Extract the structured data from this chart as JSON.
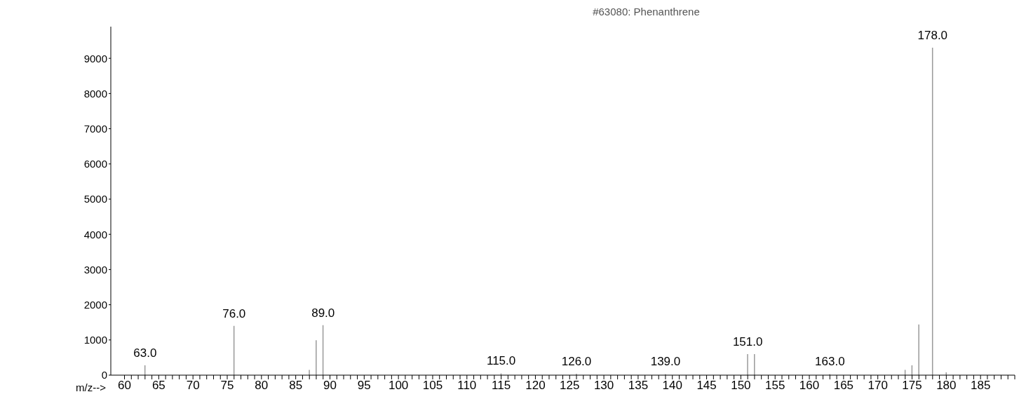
{
  "chart_data": {
    "type": "bar",
    "title": "#63080: Phenanthrene",
    "xlabel": "m/z-->",
    "x": [
      63,
      76,
      87,
      88,
      89,
      115,
      126,
      139,
      151,
      152,
      163,
      174,
      175,
      176,
      178,
      180
    ],
    "values": [
      280,
      1400,
      150,
      990,
      1420,
      50,
      40,
      30,
      600,
      600,
      30,
      150,
      280,
      1440,
      9300,
      80
    ],
    "color": "#999999",
    "xlim": [
      58,
      190
    ],
    "xticks": [
      60,
      {
        "value": 61,
        "label": null
      },
      {
        "value": 62,
        "label": null
      },
      {
        "value": 63,
        "label": null
      },
      {
        "value": 64,
        "label": null
      },
      65,
      {
        "value": 66,
        "label": null
      },
      {
        "value": 67,
        "label": null
      },
      {
        "value": 68,
        "label": null
      },
      {
        "value": 69,
        "label": null
      },
      70,
      {
        "value": 71,
        "label": null
      },
      {
        "value": 72,
        "label": null
      },
      {
        "value": 73,
        "label": null
      },
      {
        "value": 74,
        "label": null
      },
      75,
      {
        "value": 76,
        "label": null
      },
      {
        "value": 77,
        "label": null
      },
      {
        "value": 78,
        "label": null
      },
      {
        "value": 79,
        "label": null
      },
      80,
      {
        "value": 81,
        "label": null
      },
      {
        "value": 82,
        "label": null
      },
      {
        "value": 83,
        "label": null
      },
      {
        "value": 84,
        "label": null
      },
      85,
      {
        "value": 86,
        "label": null
      },
      {
        "value": 87,
        "label": null
      },
      {
        "value": 88,
        "label": null
      },
      {
        "value": 89,
        "label": null
      },
      90,
      {
        "value": 91,
        "label": null
      },
      {
        "value": 92,
        "label": null
      },
      {
        "value": 93,
        "label": null
      },
      {
        "value": 94,
        "label": null
      },
      95,
      {
        "value": 96,
        "label": null
      },
      {
        "value": 97,
        "label": null
      },
      {
        "value": 98,
        "label": null
      },
      {
        "value": 99,
        "label": null
      },
      100,
      {
        "value": 101,
        "label": null
      },
      {
        "value": 102,
        "label": null
      },
      {
        "value": 103,
        "label": null
      },
      {
        "value": 104,
        "label": null
      },
      105,
      {
        "value": 106,
        "label": null
      },
      {
        "value": 107,
        "label": null
      },
      {
        "value": 108,
        "label": null
      },
      {
        "value": 109,
        "label": null
      },
      110,
      {
        "value": 111,
        "label": null
      },
      {
        "value": 112,
        "label": null
      },
      {
        "value": 113,
        "label": null
      },
      {
        "value": 114,
        "label": null
      },
      115,
      {
        "value": 116,
        "label": null
      },
      {
        "value": 117,
        "label": null
      },
      {
        "value": 118,
        "label": null
      },
      {
        "value": 119,
        "label": null
      },
      120,
      {
        "value": 121,
        "label": null
      },
      {
        "value": 122,
        "label": null
      },
      {
        "value": 123,
        "label": null
      },
      {
        "value": 124,
        "label": null
      },
      125,
      {
        "value": 126,
        "label": null
      },
      {
        "value": 127,
        "label": null
      },
      {
        "value": 128,
        "label": null
      },
      {
        "value": 129,
        "label": null
      },
      130,
      {
        "value": 131,
        "label": null
      },
      {
        "value": 132,
        "label": null
      },
      {
        "value": 133,
        "label": null
      },
      {
        "value": 134,
        "label": null
      },
      135,
      {
        "value": 136,
        "label": null
      },
      {
        "value": 137,
        "label": null
      },
      {
        "value": 138,
        "label": null
      },
      {
        "value": 139,
        "label": null
      },
      140,
      {
        "value": 141,
        "label": null
      },
      {
        "value": 142,
        "label": null
      },
      {
        "value": 143,
        "label": null
      },
      {
        "value": 144,
        "label": null
      },
      145,
      {
        "value": 146,
        "label": null
      },
      {
        "value": 147,
        "label": null
      },
      {
        "value": 148,
        "label": null
      },
      {
        "value": 149,
        "label": null
      },
      150,
      {
        "value": 151,
        "label": null
      },
      {
        "value": 152,
        "label": null
      },
      {
        "value": 153,
        "label": null
      },
      {
        "value": 154,
        "label": null
      },
      155,
      {
        "value": 156,
        "label": null
      },
      {
        "value": 157,
        "label": null
      },
      {
        "value": 158,
        "label": null
      },
      {
        "value": 159,
        "label": null
      },
      160,
      {
        "value": 161,
        "label": null
      },
      {
        "value": 162,
        "label": null
      },
      {
        "value": 163,
        "label": null
      },
      {
        "value": 164,
        "label": null
      },
      165,
      {
        "value": 166,
        "label": null
      },
      {
        "value": 167,
        "label": null
      },
      {
        "value": 168,
        "label": null
      },
      {
        "value": 169,
        "label": null
      },
      170,
      {
        "value": 171,
        "label": null
      },
      {
        "value": 172,
        "label": null
      },
      {
        "value": 173,
        "label": null
      },
      {
        "value": 174,
        "label": null
      },
      175,
      {
        "value": 176,
        "label": null
      },
      {
        "value": 177,
        "label": null
      },
      {
        "value": 178,
        "label": null
      },
      {
        "value": 179,
        "label": null
      },
      180,
      {
        "value": 181,
        "label": null
      },
      {
        "value": 182,
        "label": null
      },
      {
        "value": 183,
        "label": null
      },
      {
        "value": 184,
        "label": null
      },
      185,
      {
        "value": 186,
        "label": null
      },
      {
        "value": 187,
        "label": null
      },
      {
        "value": 188,
        "label": null
      },
      {
        "value": 189,
        "label": null
      },
      {
        "value": 190,
        "label": null
      }
    ],
    "ylim": [
      0,
      9900
    ],
    "yticks": [
      0,
      1000,
      2000,
      3000,
      4000,
      5000,
      6000,
      7000,
      8000,
      9000
    ],
    "grid": false,
    "legend": false,
    "annotations": [
      {
        "text": "63.0",
        "x": 63,
        "y": 280
      },
      {
        "text": "76.0",
        "x": 76,
        "y": 1400
      },
      {
        "text": "89.0",
        "x": 89,
        "y": 1420
      },
      {
        "text": "115.0",
        "x": 115,
        "y": 50
      },
      {
        "text": "126.0",
        "x": 126,
        "y": 40
      },
      {
        "text": "139.0",
        "x": 139,
        "y": 30
      },
      {
        "text": "151.0",
        "x": 151,
        "y": 600
      },
      {
        "text": "163.0",
        "x": 163,
        "y": 30
      },
      {
        "text": "178.0",
        "x": 178,
        "y": 9300
      }
    ]
  }
}
